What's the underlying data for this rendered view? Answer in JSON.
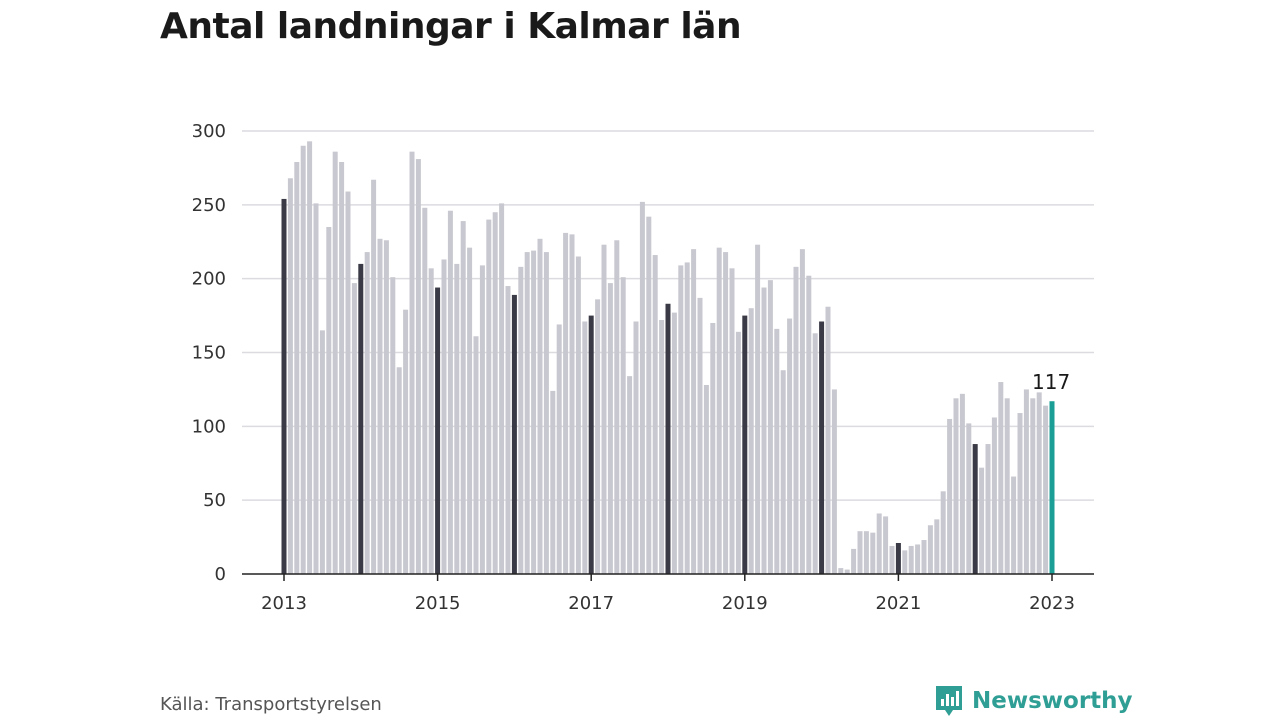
{
  "chart_data": {
    "type": "bar",
    "title": "Antal landningar i Kalmar län",
    "xlabel": "",
    "ylabel": "",
    "ylim": [
      0,
      300
    ],
    "yticks": [
      0,
      50,
      100,
      150,
      200,
      250,
      300
    ],
    "xticks": [
      "2013",
      "2015",
      "2017",
      "2019",
      "2021",
      "2023"
    ],
    "grid": true,
    "start": "2013-01",
    "end": "2023-01",
    "values": [
      254,
      268,
      279,
      290,
      293,
      251,
      165,
      235,
      286,
      279,
      259,
      197,
      210,
      218,
      267,
      227,
      226,
      201,
      140,
      179,
      286,
      281,
      248,
      207,
      194,
      213,
      246,
      210,
      239,
      221,
      161,
      209,
      240,
      245,
      251,
      195,
      189,
      208,
      218,
      219,
      227,
      218,
      124,
      169,
      231,
      230,
      215,
      171,
      175,
      186,
      223,
      197,
      226,
      201,
      134,
      171,
      252,
      242,
      216,
      172,
      183,
      177,
      209,
      211,
      220,
      187,
      128,
      170,
      221,
      218,
      207,
      164,
      175,
      180,
      223,
      194,
      199,
      166,
      138,
      173,
      208,
      220,
      202,
      163,
      171,
      181,
      125,
      4,
      3,
      17,
      29,
      29,
      28,
      41,
      39,
      19,
      21,
      16,
      19,
      20,
      23,
      33,
      37,
      56,
      105,
      119,
      122,
      102,
      88,
      72,
      88,
      106,
      130,
      119,
      66,
      109,
      125,
      119,
      123,
      114,
      117
    ],
    "highlight": "january",
    "colors": {
      "bar": "#c8c8d0",
      "january": "#3a3a46",
      "latest": "#1a9e95"
    },
    "annotations": [
      {
        "label": "117",
        "target": "last"
      }
    ]
  },
  "title": "Antal landningar i Kalmar län",
  "source": "Källa: Transportstyrelsen",
  "brand": {
    "name": "Newsworthy",
    "icon": "bar-chart-logo-icon",
    "color": "#2f9e94"
  }
}
